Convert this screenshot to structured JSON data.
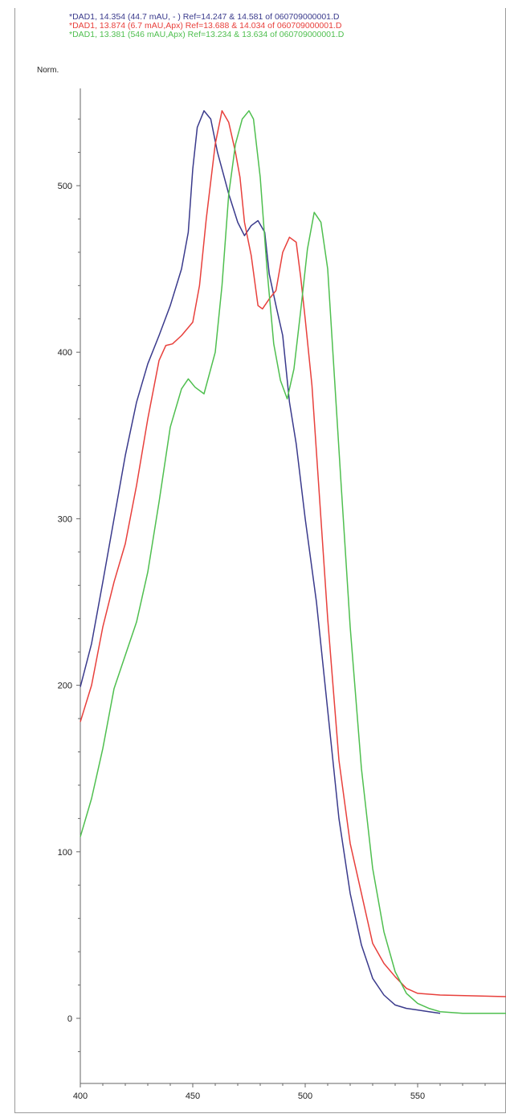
{
  "chart_data": {
    "type": "line",
    "title": "",
    "xlabel": "",
    "ylabel": "Norm.",
    "xlim": [
      400,
      590
    ],
    "ylim": [
      -30,
      570
    ],
    "x_ticks": [
      400,
      450,
      500,
      550
    ],
    "y_ticks": [
      0,
      100,
      200,
      300,
      400,
      500
    ],
    "grid": false,
    "legend_position": "top-left",
    "series": [
      {
        "name": "*DAD1, 14.354 (44.7 mAU, - ) Ref=14.247 & 14.581 of 060709000001.D",
        "color": "#3a3a8c",
        "points": [
          [
            400,
            199
          ],
          [
            405,
            225
          ],
          [
            410,
            262
          ],
          [
            415,
            300
          ],
          [
            420,
            338
          ],
          [
            425,
            370
          ],
          [
            430,
            393
          ],
          [
            435,
            410
          ],
          [
            440,
            428
          ],
          [
            445,
            450
          ],
          [
            448,
            472
          ],
          [
            450,
            510
          ],
          [
            452,
            535
          ],
          [
            455,
            545
          ],
          [
            458,
            540
          ],
          [
            461,
            520
          ],
          [
            464,
            505
          ],
          [
            466,
            495
          ],
          [
            470,
            478
          ],
          [
            473,
            470
          ],
          [
            476,
            476
          ],
          [
            479,
            479
          ],
          [
            482,
            472
          ],
          [
            484,
            447
          ],
          [
            487,
            428
          ],
          [
            490,
            410
          ],
          [
            493,
            370
          ],
          [
            496,
            345
          ],
          [
            500,
            300
          ],
          [
            505,
            250
          ],
          [
            510,
            185
          ],
          [
            515,
            120
          ],
          [
            520,
            75
          ],
          [
            525,
            44
          ],
          [
            530,
            24
          ],
          [
            535,
            14
          ],
          [
            540,
            8
          ],
          [
            545,
            6
          ],
          [
            550,
            5
          ],
          [
            555,
            4
          ],
          [
            560,
            3
          ]
        ]
      },
      {
        "name": "*DAD1, 13.874 (6.7 mAU,Apx) Ref=13.688 & 14.034 of 060709000001.D",
        "color": "#e8403c",
        "points": [
          [
            400,
            178
          ],
          [
            405,
            200
          ],
          [
            410,
            235
          ],
          [
            415,
            262
          ],
          [
            420,
            285
          ],
          [
            425,
            320
          ],
          [
            430,
            360
          ],
          [
            435,
            395
          ],
          [
            438,
            404
          ],
          [
            441,
            405
          ],
          [
            445,
            410
          ],
          [
            450,
            418
          ],
          [
            453,
            440
          ],
          [
            456,
            480
          ],
          [
            460,
            525
          ],
          [
            463,
            545
          ],
          [
            466,
            538
          ],
          [
            469,
            520
          ],
          [
            471,
            505
          ],
          [
            473,
            478
          ],
          [
            476,
            458
          ],
          [
            479,
            428
          ],
          [
            481,
            426
          ],
          [
            484,
            432
          ],
          [
            487,
            437
          ],
          [
            490,
            460
          ],
          [
            493,
            469
          ],
          [
            496,
            466
          ],
          [
            498,
            445
          ],
          [
            500,
            420
          ],
          [
            503,
            380
          ],
          [
            506,
            320
          ],
          [
            510,
            240
          ],
          [
            515,
            155
          ],
          [
            520,
            105
          ],
          [
            525,
            75
          ],
          [
            530,
            45
          ],
          [
            535,
            33
          ],
          [
            540,
            25
          ],
          [
            545,
            18
          ],
          [
            550,
            15
          ],
          [
            560,
            14
          ],
          [
            590,
            13
          ]
        ]
      },
      {
        "name": "*DAD1, 13.381 (546 mAU,Apx) Ref=13.234 & 13.634 of 060709000001.D",
        "color": "#4fbf4f",
        "points": [
          [
            400,
            109
          ],
          [
            405,
            132
          ],
          [
            410,
            162
          ],
          [
            415,
            198
          ],
          [
            420,
            218
          ],
          [
            425,
            238
          ],
          [
            430,
            268
          ],
          [
            435,
            310
          ],
          [
            440,
            355
          ],
          [
            445,
            378
          ],
          [
            448,
            384
          ],
          [
            451,
            379
          ],
          [
            455,
            375
          ],
          [
            460,
            400
          ],
          [
            463,
            440
          ],
          [
            466,
            495
          ],
          [
            469,
            525
          ],
          [
            472,
            540
          ],
          [
            475,
            545
          ],
          [
            477,
            540
          ],
          [
            480,
            505
          ],
          [
            483,
            450
          ],
          [
            486,
            405
          ],
          [
            489,
            383
          ],
          [
            492,
            372
          ],
          [
            495,
            390
          ],
          [
            498,
            425
          ],
          [
            501,
            462
          ],
          [
            504,
            484
          ],
          [
            507,
            478
          ],
          [
            510,
            450
          ],
          [
            513,
            385
          ],
          [
            516,
            320
          ],
          [
            520,
            235
          ],
          [
            525,
            150
          ],
          [
            530,
            90
          ],
          [
            535,
            52
          ],
          [
            540,
            28
          ],
          [
            545,
            15
          ],
          [
            550,
            9
          ],
          [
            555,
            6
          ],
          [
            560,
            4
          ],
          [
            570,
            3
          ],
          [
            590,
            3
          ]
        ]
      }
    ]
  }
}
